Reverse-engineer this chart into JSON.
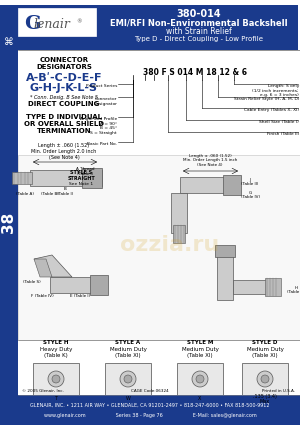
{
  "page_bg": "#ffffff",
  "header_bg": "#1a3a8c",
  "sidebar_bg": "#1a3a8c",
  "title_line1": "380-014",
  "title_line2": "EMI/RFI Non-Environmental Backshell",
  "title_line3": "with Strain Relief",
  "title_line4": "Type D - Direct Coupling - Low Profile",
  "footer_line1": "GLENAIR, INC. • 1211 AIR WAY • GLENDALE, CA 91201-2497 • 818-247-6000 • FAX 818-500-9912",
  "footer_line2": "www.glenair.com                    Series 38 - Page 76                    E-Mail: sales@glenair.com",
  "copyright": "© 2005 Glenair, Inc.",
  "cage_code": "CAGE Code:06324",
  "printed": "Printed in U.S.A.",
  "series_number": "38",
  "part_number_example": "380 F S 014 M 18 12 & 6"
}
